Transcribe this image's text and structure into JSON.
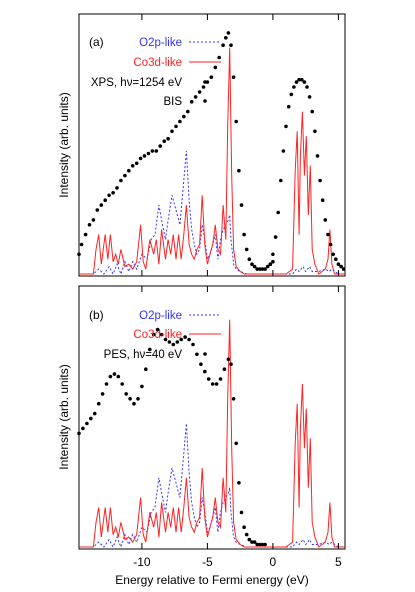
{
  "figure": {
    "shared_xlabel": "Energy relative to Fermi energy (eV)",
    "shared_ylabel": "Intensity (arb. units)",
    "xlim": [
      -14.8,
      5.5
    ],
    "x_ticks": [
      -10,
      -5,
      0,
      5
    ],
    "x_tick_labels": [
      "-10",
      "-5",
      "0",
      "5"
    ]
  },
  "colors": {
    "o2p": "#3333ff",
    "co3d": "#ff2222",
    "exp": "#000000",
    "axis": "#000000"
  },
  "chart_data": [
    {
      "type": "line",
      "panel_label": "(a)",
      "ylim": [
        0,
        1
      ],
      "grid": false,
      "legend_placement": "top-left",
      "series": [
        {
          "name": "O2p-like",
          "style": "dashed-line",
          "x": [
            -14.8,
            -13.7,
            -13.3,
            -12.9,
            -12.5,
            -12.2,
            -11.9,
            -11.6,
            -11.3,
            -11.0,
            -10.7,
            -10.4,
            -10.0,
            -9.6,
            -9.3,
            -9.0,
            -8.7,
            -8.5,
            -8.2,
            -8.0,
            -7.7,
            -7.4,
            -7.1,
            -6.9,
            -6.6,
            -6.4,
            -6.2,
            -6.0,
            -5.8,
            -5.6,
            -5.4,
            -5.2,
            -5.0,
            -4.8,
            -4.6,
            -4.4,
            -4.2,
            -4.0,
            -3.8,
            -3.6,
            -3.4,
            -3.3,
            -3.2,
            -3.0,
            -2.8,
            -2.5,
            -2.0,
            -1.5,
            -1.0,
            -0.5,
            0.0,
            0.5,
            1.0,
            1.5,
            1.8,
            2.0,
            2.3,
            2.5,
            2.8,
            3.0,
            3.5,
            4.0,
            4.3,
            4.5,
            5.0,
            5.5
          ],
          "y": [
            0.0,
            0.0,
            0.02,
            0.0,
            0.03,
            0.0,
            0.04,
            0.0,
            0.05,
            0.01,
            0.05,
            0.02,
            0.08,
            0.06,
            0.14,
            0.16,
            0.28,
            0.22,
            0.14,
            0.22,
            0.32,
            0.26,
            0.2,
            0.32,
            0.5,
            0.3,
            0.18,
            0.12,
            0.08,
            0.1,
            0.2,
            0.14,
            0.06,
            0.08,
            0.12,
            0.16,
            0.06,
            0.14,
            0.18,
            0.2,
            0.22,
            0.24,
            0.14,
            0.04,
            0.02,
            0.01,
            0.0,
            0.0,
            0.0,
            0.0,
            0.0,
            0.0,
            0.0,
            0.0,
            0.02,
            0.01,
            0.03,
            0.01,
            0.03,
            0.01,
            0.01,
            0.02,
            0.01,
            0.02,
            0.0,
            0.0
          ]
        },
        {
          "name": "Co3d-like",
          "style": "solid-line",
          "x": [
            -14.8,
            -13.7,
            -13.5,
            -13.3,
            -13.1,
            -12.8,
            -12.6,
            -12.4,
            -12.2,
            -12.0,
            -11.8,
            -11.6,
            -11.3,
            -11.0,
            -10.7,
            -10.4,
            -10.1,
            -9.9,
            -9.7,
            -9.4,
            -9.1,
            -8.9,
            -8.7,
            -8.5,
            -8.2,
            -8.0,
            -7.8,
            -7.6,
            -7.4,
            -7.2,
            -7.0,
            -6.8,
            -6.6,
            -6.4,
            -6.2,
            -6.0,
            -5.8,
            -5.6,
            -5.4,
            -5.2,
            -5.0,
            -4.8,
            -4.6,
            -4.4,
            -4.2,
            -4.0,
            -3.8,
            -3.6,
            -3.45,
            -3.3,
            -3.15,
            -3.0,
            -2.8,
            -2.5,
            -2.2,
            -2.0,
            -1.5,
            -1.0,
            0.0,
            1.0,
            1.5,
            1.7,
            1.85,
            2.0,
            2.1,
            2.25,
            2.4,
            2.55,
            2.7,
            2.85,
            3.0,
            3.2,
            3.5,
            4.0,
            4.2,
            4.35,
            4.5,
            4.7,
            5.0,
            5.5
          ],
          "y": [
            0.0,
            0.0,
            0.1,
            0.16,
            0.04,
            0.16,
            0.06,
            0.16,
            0.05,
            0.08,
            0.04,
            0.1,
            0.03,
            0.04,
            0.02,
            0.05,
            0.2,
            0.05,
            0.02,
            0.14,
            0.08,
            0.14,
            0.04,
            0.18,
            0.06,
            0.14,
            0.08,
            0.16,
            0.06,
            0.16,
            0.06,
            0.16,
            0.28,
            0.12,
            0.08,
            0.06,
            0.1,
            0.12,
            0.32,
            0.12,
            0.04,
            0.08,
            0.12,
            0.2,
            0.1,
            0.08,
            0.28,
            0.14,
            0.6,
            0.92,
            0.4,
            0.1,
            0.03,
            0.01,
            0.0,
            0.0,
            0.0,
            0.0,
            0.0,
            0.0,
            0.02,
            0.42,
            0.58,
            0.16,
            0.48,
            0.66,
            0.4,
            0.56,
            0.24,
            0.44,
            0.1,
            0.04,
            0.0,
            0.02,
            0.06,
            0.18,
            0.04,
            0.0,
            0.0,
            0.0
          ]
        },
        {
          "name": "XPS, hν=1254 eV",
          "style": "dots",
          "x": [
            -14.8,
            -14.6,
            -14.3,
            -14.0,
            -13.7,
            -13.4,
            -13.1,
            -12.8,
            -12.5,
            -12.2,
            -11.9,
            -11.6,
            -11.3,
            -11.0,
            -10.7,
            -10.4,
            -10.1,
            -9.8,
            -9.5,
            -9.2,
            -8.9,
            -8.6,
            -8.3,
            -8.0,
            -7.7,
            -7.4,
            -7.1,
            -6.8,
            -6.5,
            -6.2,
            -5.9,
            -5.6,
            -5.3,
            -5.0,
            -4.7,
            -4.4,
            -4.1,
            -3.8,
            -3.6,
            -3.4,
            -3.2,
            -3.0,
            -2.8,
            -2.6,
            -2.4,
            -2.2,
            -2.0,
            -1.8,
            -1.6,
            -1.4,
            -1.2,
            -1.0,
            -0.8,
            -0.6,
            -0.4,
            -0.2,
            0.0
          ],
          "y": [
            0.08,
            0.12,
            0.16,
            0.2,
            0.22,
            0.26,
            0.28,
            0.3,
            0.32,
            0.33,
            0.35,
            0.38,
            0.4,
            0.42,
            0.44,
            0.45,
            0.47,
            0.48,
            0.49,
            0.5,
            0.5,
            0.52,
            0.54,
            0.55,
            0.58,
            0.6,
            0.62,
            0.64,
            0.66,
            0.7,
            0.72,
            0.74,
            0.76,
            0.78,
            0.8,
            0.84,
            0.88,
            0.93,
            0.96,
            0.98,
            0.93,
            0.8,
            0.62,
            0.42,
            0.28,
            0.16,
            0.1,
            0.06,
            0.04,
            0.03,
            0.02,
            0.02,
            0.02,
            0.02,
            0.03,
            0.04,
            0.05
          ]
        },
        {
          "name": "BIS",
          "style": "dots",
          "x": [
            -0.2,
            0.0,
            0.2,
            0.4,
            0.6,
            0.8,
            1.0,
            1.2,
            1.4,
            1.6,
            1.8,
            2.0,
            2.2,
            2.4,
            2.6,
            2.8,
            3.0,
            3.2,
            3.4,
            3.6,
            3.8,
            4.0,
            4.2,
            4.4,
            4.6,
            4.8,
            5.0,
            5.2,
            5.4
          ],
          "y": [
            0.04,
            0.08,
            0.15,
            0.25,
            0.38,
            0.5,
            0.6,
            0.68,
            0.73,
            0.76,
            0.78,
            0.79,
            0.79,
            0.78,
            0.76,
            0.72,
            0.66,
            0.58,
            0.48,
            0.38,
            0.3,
            0.22,
            0.16,
            0.12,
            0.08,
            0.06,
            0.04,
            0.03,
            0.02
          ]
        }
      ]
    },
    {
      "type": "line",
      "panel_label": "(b)",
      "ylim": [
        0,
        1
      ],
      "grid": false,
      "legend_placement": "top-left",
      "series": [
        {
          "name": "O2p-like",
          "style": "dashed-line",
          "x": [
            -14.8,
            -13.7,
            -13.3,
            -12.9,
            -12.5,
            -12.2,
            -11.9,
            -11.6,
            -11.3,
            -11.0,
            -10.7,
            -10.4,
            -10.0,
            -9.6,
            -9.3,
            -9.0,
            -8.7,
            -8.5,
            -8.2,
            -8.0,
            -7.7,
            -7.4,
            -7.1,
            -6.9,
            -6.6,
            -6.4,
            -6.2,
            -6.0,
            -5.8,
            -5.6,
            -5.4,
            -5.2,
            -5.0,
            -4.8,
            -4.6,
            -4.4,
            -4.2,
            -4.0,
            -3.8,
            -3.6,
            -3.4,
            -3.3,
            -3.2,
            -3.0,
            -2.8,
            -2.5,
            -2.0,
            -1.5,
            -1.0,
            -0.5,
            0.0,
            0.5,
            1.0,
            1.5,
            1.8,
            2.0,
            2.3,
            2.5,
            2.8,
            3.0,
            3.5,
            4.0,
            4.3,
            4.5,
            5.0,
            5.5
          ],
          "y": [
            0.0,
            0.0,
            0.02,
            0.0,
            0.03,
            0.0,
            0.04,
            0.0,
            0.05,
            0.01,
            0.05,
            0.02,
            0.08,
            0.06,
            0.14,
            0.16,
            0.28,
            0.22,
            0.14,
            0.22,
            0.32,
            0.26,
            0.2,
            0.32,
            0.5,
            0.3,
            0.18,
            0.12,
            0.08,
            0.1,
            0.2,
            0.14,
            0.06,
            0.08,
            0.12,
            0.16,
            0.06,
            0.14,
            0.18,
            0.2,
            0.22,
            0.24,
            0.14,
            0.04,
            0.02,
            0.01,
            0.0,
            0.0,
            0.0,
            0.0,
            0.0,
            0.0,
            0.0,
            0.0,
            0.02,
            0.01,
            0.03,
            0.01,
            0.03,
            0.01,
            0.01,
            0.02,
            0.01,
            0.02,
            0.0,
            0.0
          ]
        },
        {
          "name": "Co3d-like",
          "style": "solid-line",
          "x": [
            -14.8,
            -13.7,
            -13.5,
            -13.3,
            -13.1,
            -12.8,
            -12.6,
            -12.4,
            -12.2,
            -12.0,
            -11.8,
            -11.6,
            -11.3,
            -11.0,
            -10.7,
            -10.4,
            -10.1,
            -9.9,
            -9.7,
            -9.4,
            -9.1,
            -8.9,
            -8.7,
            -8.5,
            -8.2,
            -8.0,
            -7.8,
            -7.6,
            -7.4,
            -7.2,
            -7.0,
            -6.8,
            -6.6,
            -6.4,
            -6.2,
            -6.0,
            -5.8,
            -5.6,
            -5.4,
            -5.2,
            -5.0,
            -4.8,
            -4.6,
            -4.4,
            -4.2,
            -4.0,
            -3.8,
            -3.6,
            -3.45,
            -3.3,
            -3.15,
            -3.0,
            -2.8,
            -2.5,
            -2.2,
            -2.0,
            -1.5,
            -1.0,
            0.0,
            1.0,
            1.5,
            1.7,
            1.85,
            2.0,
            2.1,
            2.25,
            2.4,
            2.55,
            2.7,
            2.85,
            3.0,
            3.2,
            3.5,
            4.0,
            4.2,
            4.35,
            4.5,
            4.7,
            5.0,
            5.5
          ],
          "y": [
            0.0,
            0.0,
            0.1,
            0.16,
            0.04,
            0.16,
            0.06,
            0.16,
            0.05,
            0.08,
            0.04,
            0.1,
            0.03,
            0.04,
            0.02,
            0.05,
            0.2,
            0.05,
            0.02,
            0.14,
            0.08,
            0.14,
            0.04,
            0.18,
            0.06,
            0.14,
            0.08,
            0.16,
            0.06,
            0.16,
            0.06,
            0.16,
            0.28,
            0.12,
            0.08,
            0.06,
            0.1,
            0.12,
            0.32,
            0.12,
            0.04,
            0.08,
            0.12,
            0.2,
            0.1,
            0.08,
            0.28,
            0.14,
            0.6,
            0.92,
            0.4,
            0.1,
            0.03,
            0.01,
            0.0,
            0.0,
            0.0,
            0.0,
            0.0,
            0.0,
            0.02,
            0.42,
            0.58,
            0.16,
            0.48,
            0.66,
            0.4,
            0.56,
            0.24,
            0.44,
            0.1,
            0.04,
            0.0,
            0.02,
            0.06,
            0.18,
            0.04,
            0.0,
            0.0,
            0.0
          ]
        },
        {
          "name": "PES, hν=40 eV",
          "style": "dots",
          "x": [
            -14.8,
            -14.5,
            -14.2,
            -13.9,
            -13.6,
            -13.3,
            -13.0,
            -12.7,
            -12.4,
            -12.1,
            -11.8,
            -11.5,
            -11.2,
            -10.9,
            -10.6,
            -10.3,
            -10.0,
            -9.7,
            -9.4,
            -9.1,
            -8.8,
            -8.5,
            -8.2,
            -7.9,
            -7.6,
            -7.3,
            -7.0,
            -6.7,
            -6.4,
            -6.1,
            -5.8,
            -5.5,
            -5.2,
            -4.9,
            -4.6,
            -4.3,
            -4.0,
            -3.7,
            -3.4,
            -3.2,
            -3.0,
            -2.8,
            -2.6,
            -2.4,
            -2.2,
            -2.0,
            -1.8,
            -1.6,
            -1.4,
            -1.2,
            -1.0,
            -0.8,
            -0.6
          ],
          "y": [
            0.46,
            0.48,
            0.5,
            0.52,
            0.54,
            0.58,
            0.62,
            0.66,
            0.69,
            0.7,
            0.69,
            0.66,
            0.62,
            0.6,
            0.58,
            0.6,
            0.65,
            0.72,
            0.8,
            0.86,
            0.88,
            0.86,
            0.84,
            0.83,
            0.82,
            0.83,
            0.84,
            0.85,
            0.84,
            0.82,
            0.78,
            0.74,
            0.71,
            0.68,
            0.66,
            0.66,
            0.68,
            0.72,
            0.76,
            0.74,
            0.6,
            0.42,
            0.26,
            0.14,
            0.08,
            0.05,
            0.03,
            0.02,
            0.02,
            0.01,
            0.01,
            0.01,
            0.01
          ]
        }
      ]
    }
  ]
}
